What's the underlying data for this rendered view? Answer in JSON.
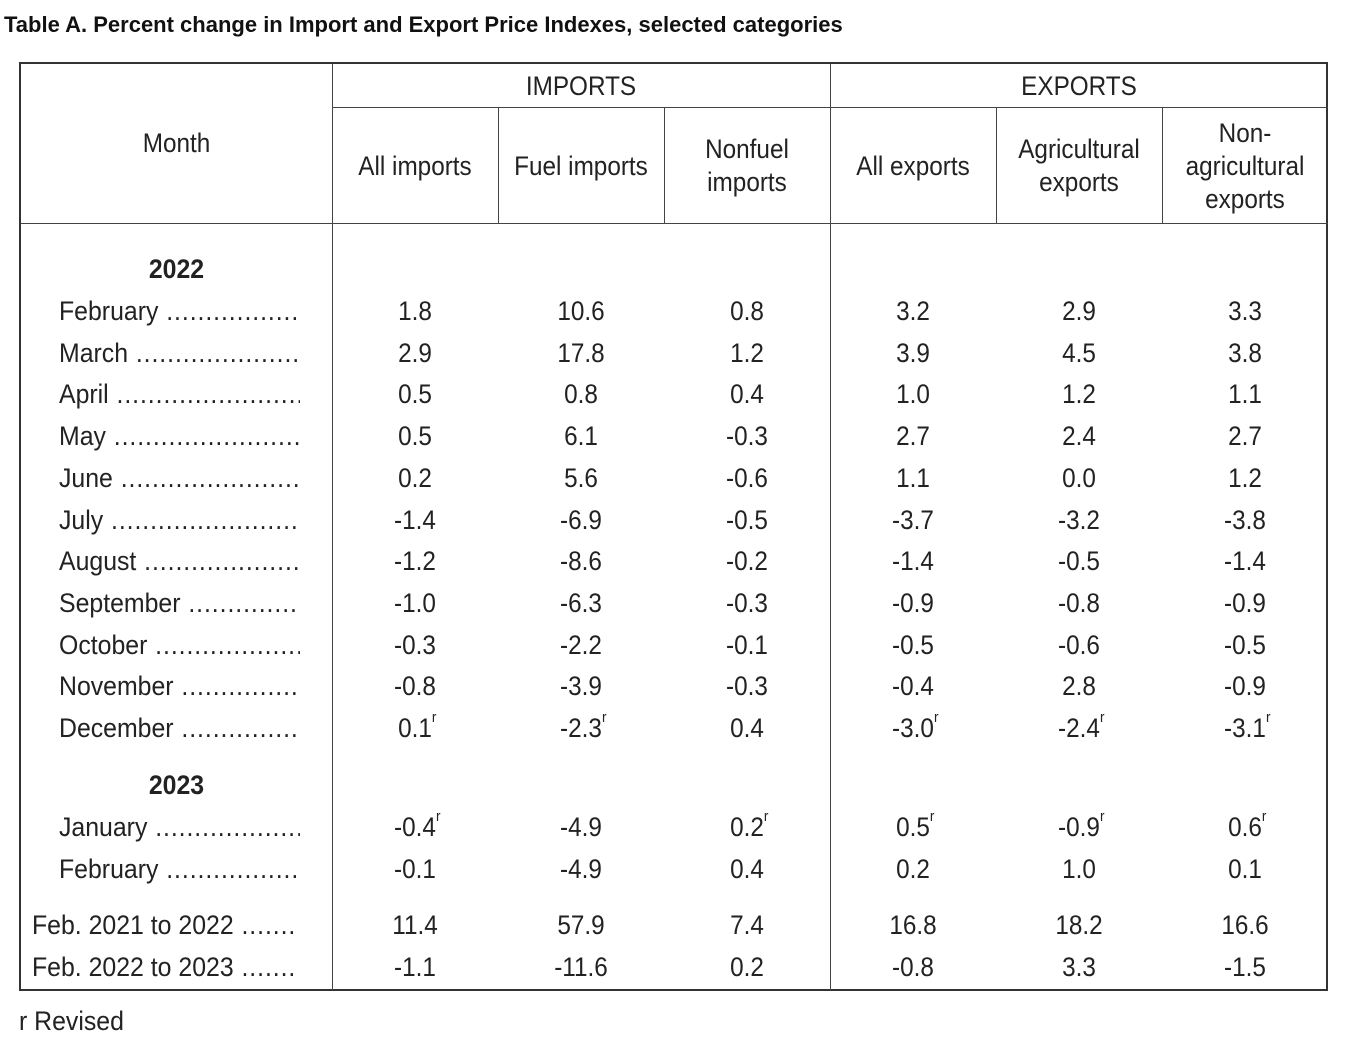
{
  "title": "Table A. Percent change in Import and Export Price Indexes, selected categories",
  "header": {
    "month": "Month",
    "imports_group": "IMPORTS",
    "exports_group": "EXPORTS",
    "columns": [
      "All imports",
      "Fuel imports",
      "Nonfuel imports",
      "All exports",
      "Agricultural exports",
      "Non-agricultural exports"
    ]
  },
  "revised_marker": "r",
  "sections": [
    {
      "year": "2022",
      "rows": [
        {
          "label": "February",
          "values": [
            "1.8",
            "10.6",
            "0.8",
            "3.2",
            "2.9",
            "3.3"
          ],
          "revised": [
            false,
            false,
            false,
            false,
            false,
            false
          ]
        },
        {
          "label": "March",
          "values": [
            "2.9",
            "17.8",
            "1.2",
            "3.9",
            "4.5",
            "3.8"
          ],
          "revised": [
            false,
            false,
            false,
            false,
            false,
            false
          ]
        },
        {
          "label": "April",
          "values": [
            "0.5",
            "0.8",
            "0.4",
            "1.0",
            "1.2",
            "1.1"
          ],
          "revised": [
            false,
            false,
            false,
            false,
            false,
            false
          ]
        },
        {
          "label": "May",
          "values": [
            "0.5",
            "6.1",
            "-0.3",
            "2.7",
            "2.4",
            "2.7"
          ],
          "revised": [
            false,
            false,
            false,
            false,
            false,
            false
          ]
        },
        {
          "label": "June",
          "values": [
            "0.2",
            "5.6",
            "-0.6",
            "1.1",
            "0.0",
            "1.2"
          ],
          "revised": [
            false,
            false,
            false,
            false,
            false,
            false
          ]
        },
        {
          "label": "July",
          "values": [
            "-1.4",
            "-6.9",
            "-0.5",
            "-3.7",
            "-3.2",
            "-3.8"
          ],
          "revised": [
            false,
            false,
            false,
            false,
            false,
            false
          ]
        },
        {
          "label": "August",
          "values": [
            "-1.2",
            "-8.6",
            "-0.2",
            "-1.4",
            "-0.5",
            "-1.4"
          ],
          "revised": [
            false,
            false,
            false,
            false,
            false,
            false
          ]
        },
        {
          "label": "September",
          "values": [
            "-1.0",
            "-6.3",
            "-0.3",
            "-0.9",
            "-0.8",
            "-0.9"
          ],
          "revised": [
            false,
            false,
            false,
            false,
            false,
            false
          ]
        },
        {
          "label": "October",
          "values": [
            "-0.3",
            "-2.2",
            "-0.1",
            "-0.5",
            "-0.6",
            "-0.5"
          ],
          "revised": [
            false,
            false,
            false,
            false,
            false,
            false
          ]
        },
        {
          "label": "November",
          "values": [
            "-0.8",
            "-3.9",
            "-0.3",
            "-0.4",
            "2.8",
            "-0.9"
          ],
          "revised": [
            false,
            false,
            false,
            false,
            false,
            false
          ]
        },
        {
          "label": "December",
          "values": [
            "0.1",
            "-2.3",
            "0.4",
            "-3.0",
            "-2.4",
            "-3.1"
          ],
          "revised": [
            true,
            true,
            false,
            true,
            true,
            true
          ]
        }
      ]
    },
    {
      "year": "2023",
      "rows": [
        {
          "label": "January",
          "values": [
            "-0.4",
            "-4.9",
            "0.2",
            "0.5",
            "-0.9",
            "0.6"
          ],
          "revised": [
            true,
            false,
            true,
            true,
            true,
            true
          ]
        },
        {
          "label": "February",
          "values": [
            "-0.1",
            "-4.9",
            "0.4",
            "0.2",
            "1.0",
            "0.1"
          ],
          "revised": [
            false,
            false,
            false,
            false,
            false,
            false
          ]
        }
      ]
    }
  ],
  "summary": [
    {
      "label": "Feb. 2021 to 2022",
      "values": [
        "11.4",
        "57.9",
        "7.4",
        "16.8",
        "18.2",
        "16.6"
      ]
    },
    {
      "label": "Feb. 2022 to 2023",
      "values": [
        "-1.1",
        "-11.6",
        "0.2",
        "-0.8",
        "3.3",
        "-1.5"
      ]
    }
  ],
  "footnote": "r Revised"
}
